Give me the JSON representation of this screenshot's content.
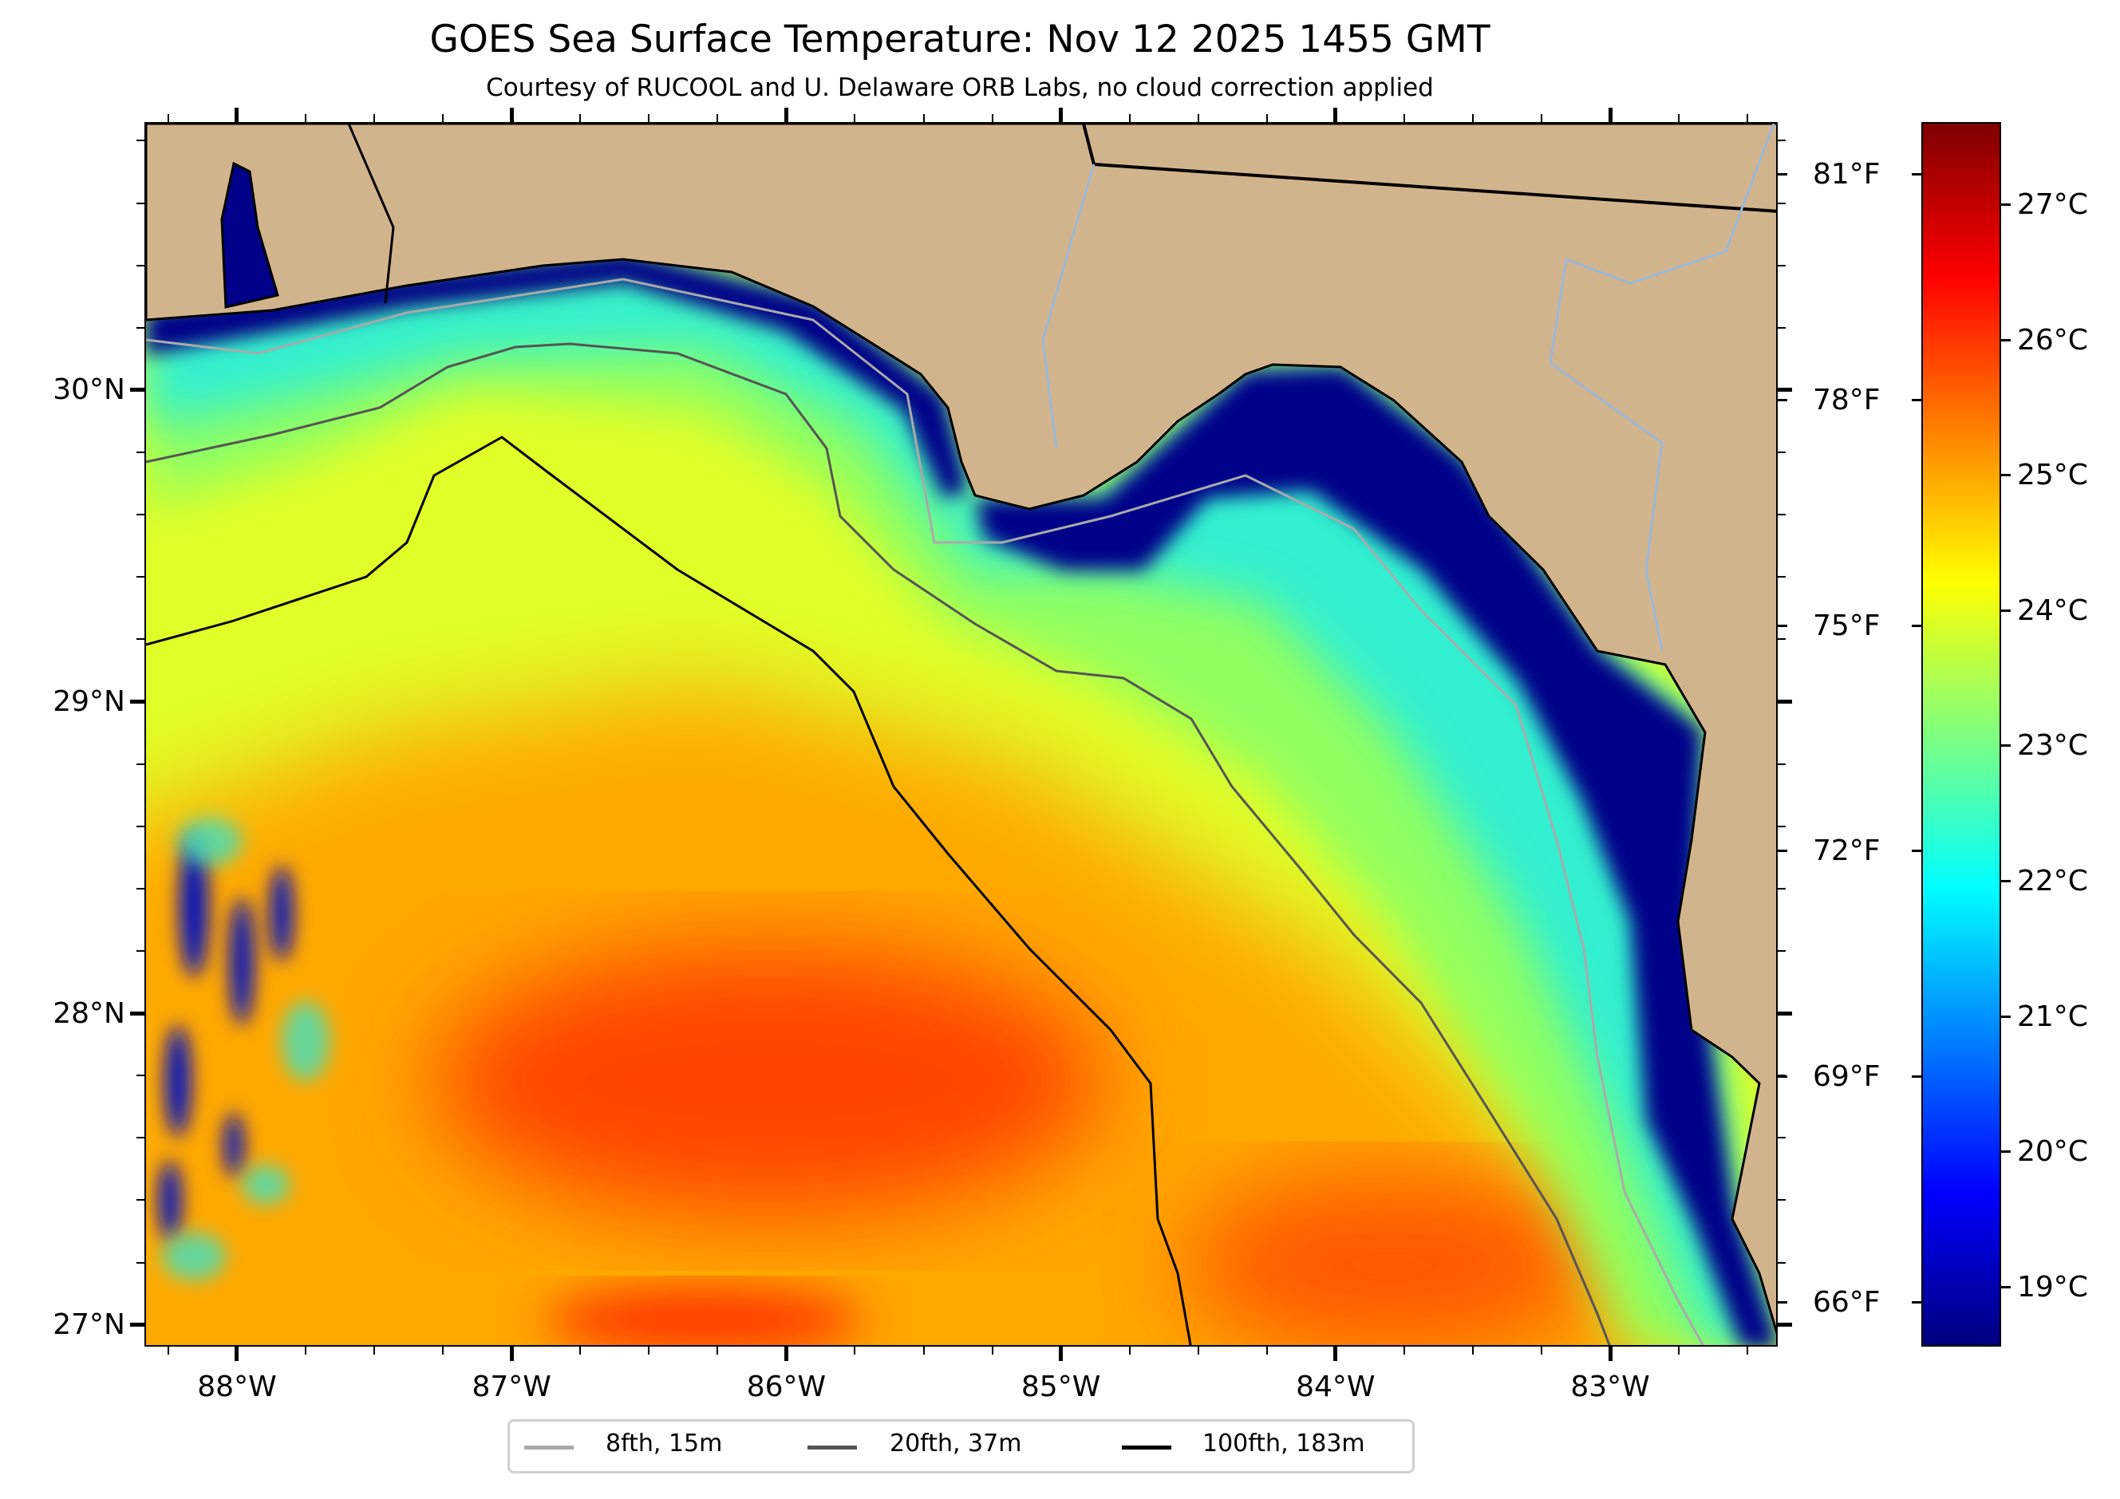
{
  "title": "GOES Sea Surface Temperature: Nov 12 2025 1455 GMT",
  "subtitle": "Courtesy of RUCOOL and U. Delaware ORB Labs, no cloud correction applied",
  "colors": {
    "land": "#d2b48c",
    "contour_8fth": "#aaaaaa",
    "contour_20fth": "#555555",
    "contour_100fth": "#000000"
  },
  "axes": {
    "lon_ticks": [
      {
        "value": -88,
        "label": "88°W"
      },
      {
        "value": -87,
        "label": "87°W"
      },
      {
        "value": -86,
        "label": "86°W"
      },
      {
        "value": -85,
        "label": "85°W"
      },
      {
        "value": -84,
        "label": "84°W"
      },
      {
        "value": -83,
        "label": "83°W"
      }
    ],
    "lat_ticks": [
      {
        "value": 30,
        "label": "30°N"
      },
      {
        "value": 29,
        "label": "29°N"
      },
      {
        "value": 28,
        "label": "28°N"
      },
      {
        "value": 27,
        "label": "27°N"
      }
    ],
    "lon_range": [
      -88.337,
      -82.39
    ],
    "lat_range": [
      26.93,
      30.86
    ]
  },
  "colorbar": {
    "celsius_range": [
      18.56,
      27.61
    ],
    "colormap": "jet",
    "celsius_ticks": [
      {
        "value": 27,
        "label": "27°C"
      },
      {
        "value": 26,
        "label": "26°C"
      },
      {
        "value": 25,
        "label": "25°C"
      },
      {
        "value": 24,
        "label": "24°C"
      },
      {
        "value": 23,
        "label": "23°C"
      },
      {
        "value": 22,
        "label": "22°C"
      },
      {
        "value": 21,
        "label": "21°C"
      },
      {
        "value": 20,
        "label": "20°C"
      },
      {
        "value": 19,
        "label": "19°C"
      }
    ],
    "fahrenheit_ticks": [
      {
        "value": 81,
        "label": "81°F"
      },
      {
        "value": 78,
        "label": "78°F"
      },
      {
        "value": 75,
        "label": "75°F"
      },
      {
        "value": 72,
        "label": "72°F"
      },
      {
        "value": 69,
        "label": "69°F"
      },
      {
        "value": 66,
        "label": "66°F"
      }
    ]
  },
  "legend": {
    "items": [
      {
        "label": "8fth, 15m",
        "color": "#aaaaaa"
      },
      {
        "label": "20fth, 37m",
        "color": "#555555"
      },
      {
        "label": "100fth, 183m",
        "color": "#000000"
      }
    ]
  }
}
